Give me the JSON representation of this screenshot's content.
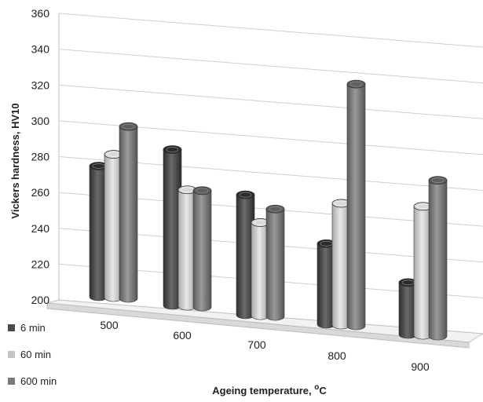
{
  "chart_data": {
    "type": "bar",
    "xlabel_main": "Ageing temperature, ",
    "xlabel_sup": "o",
    "xlabel_tail": "C",
    "ylabel": "Vickers hardness,  HV10",
    "categories": [
      "500",
      "600",
      "700",
      "800",
      "900"
    ],
    "ylim": [
      200,
      360
    ],
    "yticks": [
      "200",
      "220",
      "240",
      "260",
      "280",
      "300",
      "320",
      "340",
      "360"
    ],
    "series": [
      {
        "name": "6 min",
        "color": "#4a4a4a",
        "values": [
          273,
          287,
          267,
          245,
          229
        ]
      },
      {
        "name": "60 min",
        "color": "#c4c4c4",
        "values": [
          280,
          265,
          252,
          268,
          272
        ]
      },
      {
        "name": "600 min",
        "color": "#7a7a7a",
        "values": [
          296,
          265,
          260,
          335,
          287
        ]
      }
    ],
    "legend_position": "bottom-left",
    "grid": true,
    "style": "3d-cylinder"
  }
}
